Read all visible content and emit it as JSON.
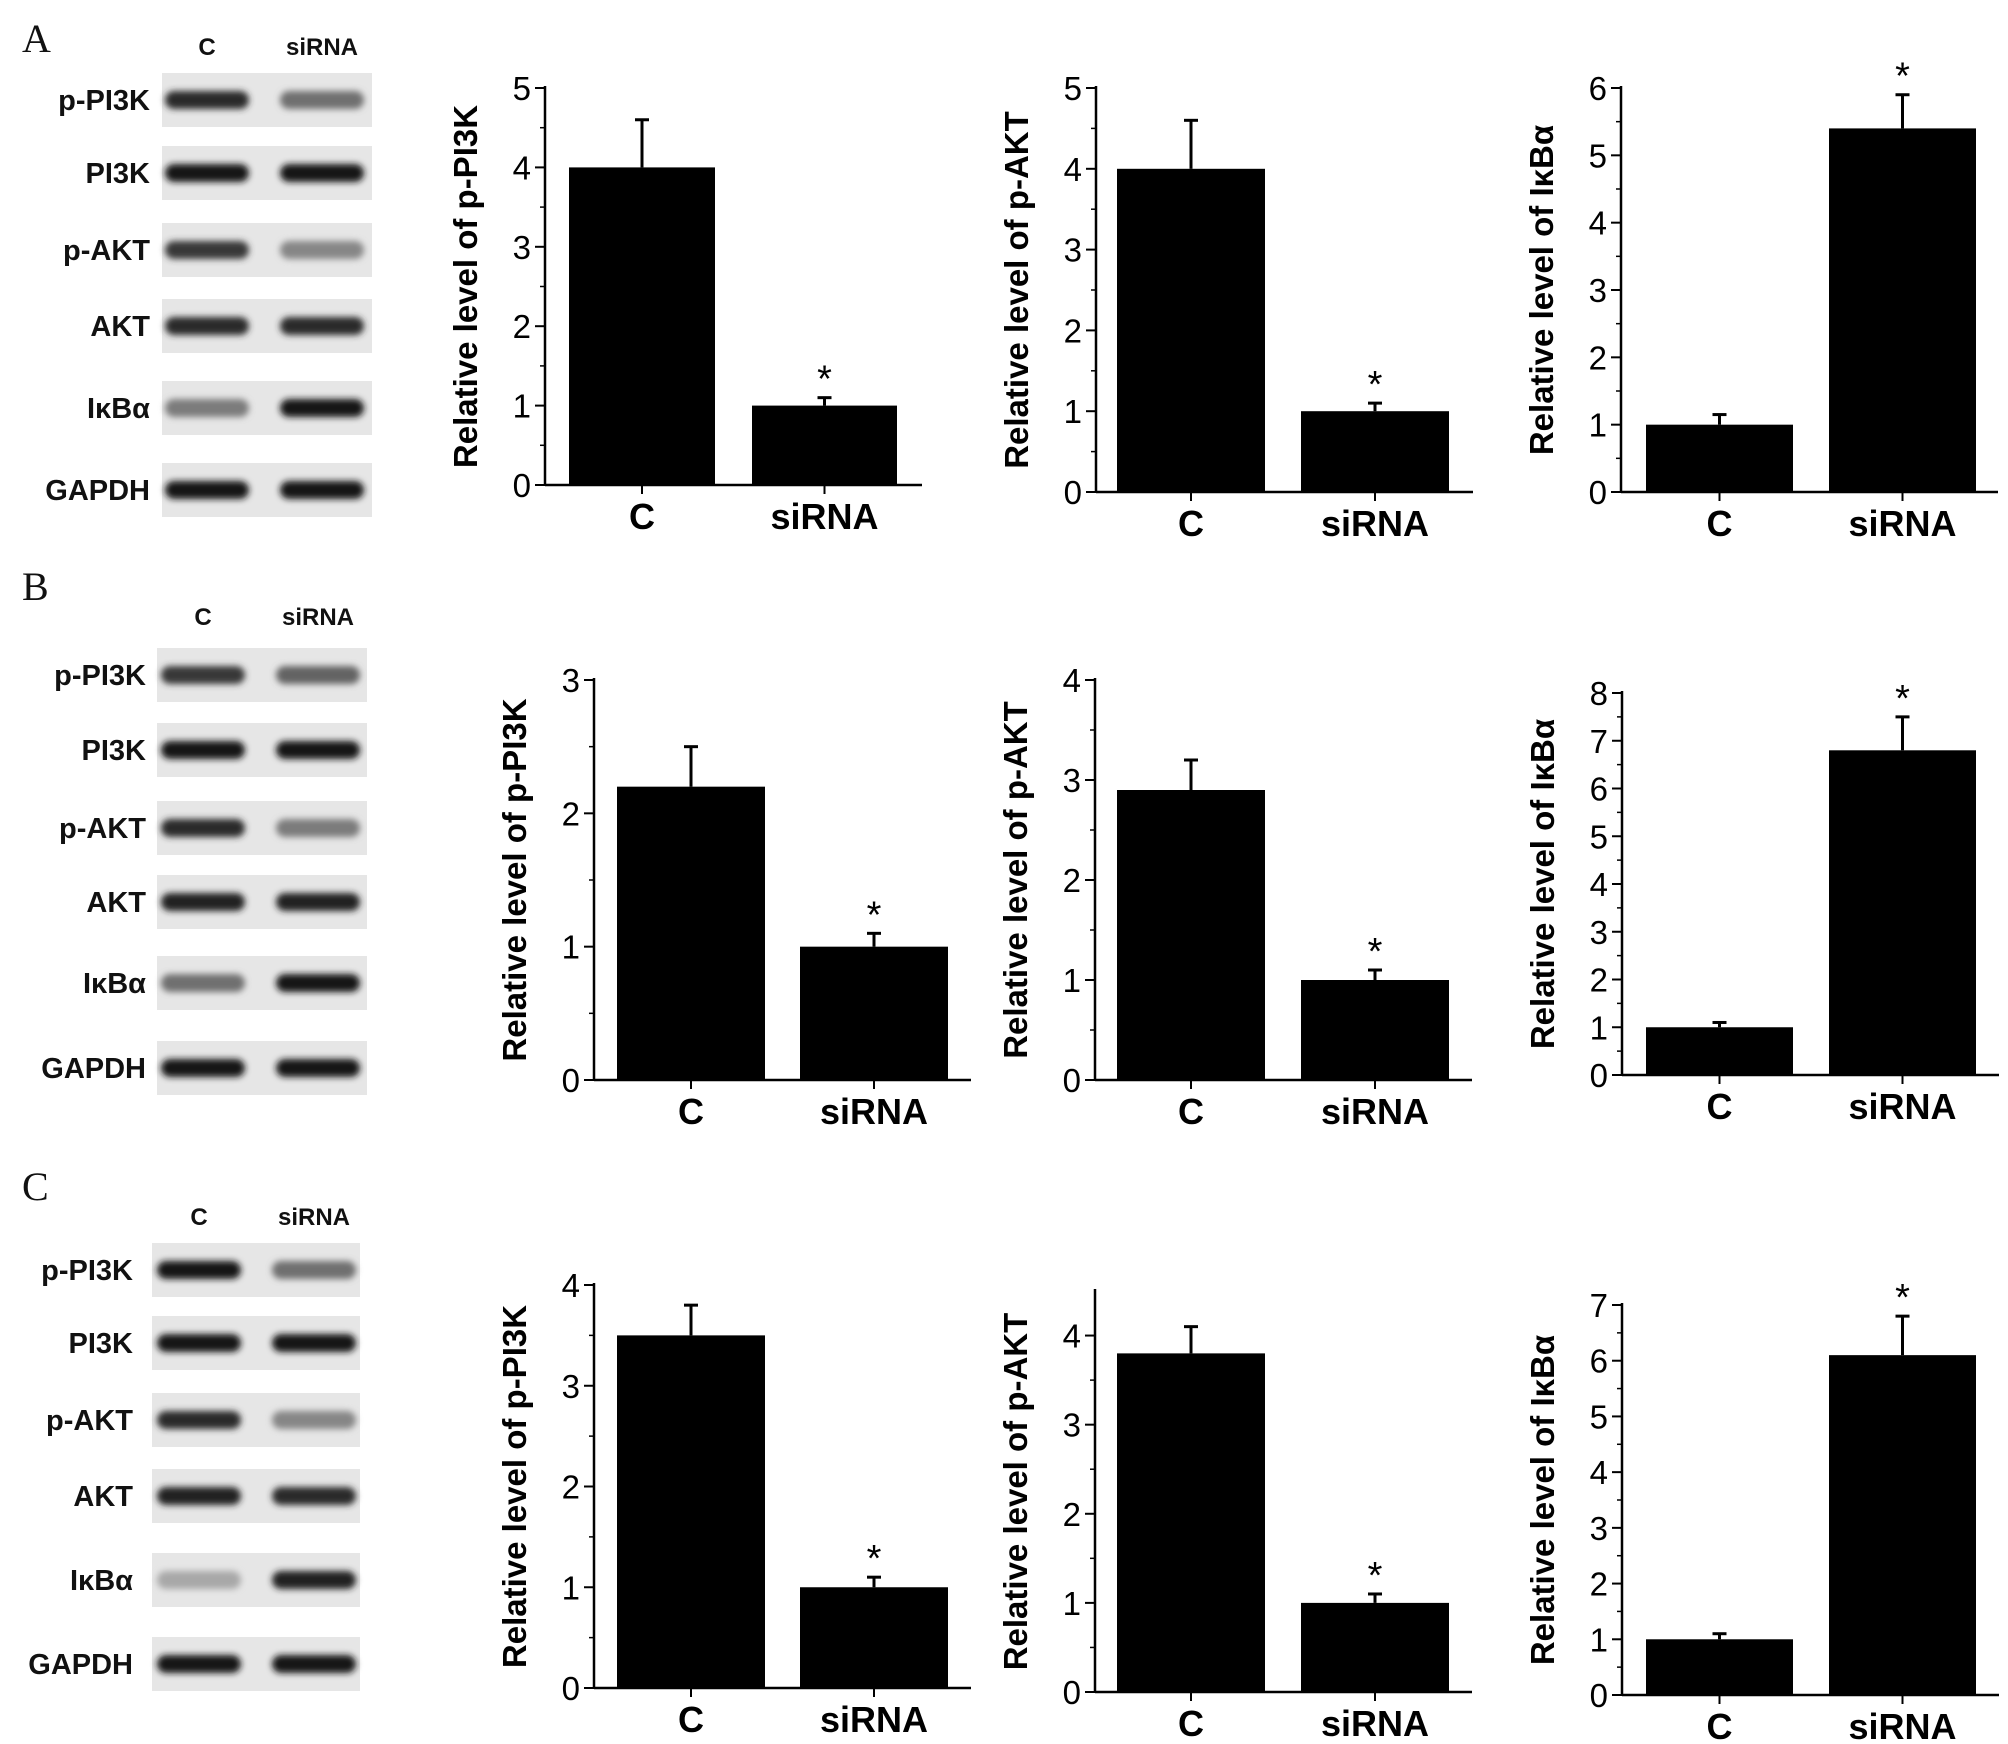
{
  "panels": [
    {
      "letter": "A",
      "blot": {
        "lanes": [
          "C",
          "siRNA"
        ],
        "rows": [
          {
            "label": "p-PI3K",
            "intensity": [
              0.85,
              0.55
            ]
          },
          {
            "label": "PI3K",
            "intensity": [
              0.95,
              0.95
            ]
          },
          {
            "label": "p-AKT",
            "intensity": [
              0.8,
              0.45
            ]
          },
          {
            "label": "AKT",
            "intensity": [
              0.85,
              0.85
            ]
          },
          {
            "label": "IκBα",
            "intensity": [
              0.5,
              0.95
            ]
          },
          {
            "label": "GAPDH",
            "intensity": [
              0.95,
              0.95
            ]
          }
        ]
      }
    },
    {
      "letter": "B",
      "blot": {
        "lanes": [
          "C",
          "siRNA"
        ],
        "rows": [
          {
            "label": "p-PI3K",
            "intensity": [
              0.8,
              0.6
            ]
          },
          {
            "label": "PI3K",
            "intensity": [
              0.95,
              0.95
            ]
          },
          {
            "label": "p-AKT",
            "intensity": [
              0.85,
              0.5
            ]
          },
          {
            "label": "AKT",
            "intensity": [
              0.9,
              0.9
            ]
          },
          {
            "label": "IκBα",
            "intensity": [
              0.55,
              0.95
            ]
          },
          {
            "label": "GAPDH",
            "intensity": [
              0.95,
              0.95
            ]
          }
        ]
      }
    },
    {
      "letter": "C",
      "blot": {
        "lanes": [
          "C",
          "siRNA"
        ],
        "rows": [
          {
            "label": "p-PI3K",
            "intensity": [
              0.95,
              0.55
            ]
          },
          {
            "label": "PI3K",
            "intensity": [
              0.95,
              0.95
            ]
          },
          {
            "label": "p-AKT",
            "intensity": [
              0.85,
              0.45
            ]
          },
          {
            "label": "AKT",
            "intensity": [
              0.9,
              0.85
            ]
          },
          {
            "label": "IκBα",
            "intensity": [
              0.3,
              0.9
            ]
          },
          {
            "label": "GAPDH",
            "intensity": [
              0.95,
              0.95
            ]
          }
        ]
      }
    }
  ],
  "chart_data": [
    {
      "panel": "A",
      "type": "bar",
      "categories": [
        "C",
        "siRNA"
      ],
      "values": [
        4.0,
        1.0
      ],
      "errors": [
        0.6,
        0.1
      ],
      "significance": [
        "",
        "*"
      ],
      "ylabel": "Relative level of p-PI3K",
      "ylim": [
        0,
        5
      ],
      "yticks": [
        0,
        1,
        2,
        3,
        4,
        5
      ]
    },
    {
      "panel": "A",
      "type": "bar",
      "categories": [
        "C",
        "siRNA"
      ],
      "values": [
        4.0,
        1.0
      ],
      "errors": [
        0.6,
        0.1
      ],
      "significance": [
        "",
        "*"
      ],
      "ylabel": "Relative level of p-AKT",
      "ylim": [
        0,
        5
      ],
      "yticks": [
        0,
        1,
        2,
        3,
        4,
        5
      ]
    },
    {
      "panel": "A",
      "type": "bar",
      "categories": [
        "C",
        "siRNA"
      ],
      "values": [
        1.0,
        5.4
      ],
      "errors": [
        0.15,
        0.5
      ],
      "significance": [
        "",
        "*"
      ],
      "ylabel": "Relative level of IκBα",
      "ylim": [
        0,
        6
      ],
      "yticks": [
        0,
        1,
        2,
        3,
        4,
        5,
        6
      ]
    },
    {
      "panel": "B",
      "type": "bar",
      "categories": [
        "C",
        "siRNA"
      ],
      "values": [
        2.2,
        1.0
      ],
      "errors": [
        0.3,
        0.1
      ],
      "significance": [
        "",
        "*"
      ],
      "ylabel": "Relative level of p-PI3K",
      "ylim": [
        0,
        3
      ],
      "yticks": [
        0,
        1,
        2,
        3
      ]
    },
    {
      "panel": "B",
      "type": "bar",
      "categories": [
        "C",
        "siRNA"
      ],
      "values": [
        2.9,
        1.0
      ],
      "errors": [
        0.3,
        0.1
      ],
      "significance": [
        "",
        "*"
      ],
      "ylabel": "Relative level of p-AKT",
      "ylim": [
        0,
        4
      ],
      "yticks": [
        0,
        1,
        2,
        3,
        4
      ]
    },
    {
      "panel": "B",
      "type": "bar",
      "categories": [
        "C",
        "siRNA"
      ],
      "values": [
        1.0,
        6.8
      ],
      "errors": [
        0.1,
        0.7
      ],
      "significance": [
        "",
        "*"
      ],
      "ylabel": "Relative level of IκBα",
      "ylim": [
        0,
        8
      ],
      "yticks": [
        0,
        1,
        2,
        3,
        4,
        5,
        6,
        7,
        8
      ]
    },
    {
      "panel": "C",
      "type": "bar",
      "categories": [
        "C",
        "siRNA"
      ],
      "values": [
        3.5,
        1.0
      ],
      "errors": [
        0.3,
        0.1
      ],
      "significance": [
        "",
        "*"
      ],
      "ylabel": "Relative level of p-PI3K",
      "ylim": [
        0,
        4
      ],
      "yticks": [
        0,
        1,
        2,
        3,
        4
      ]
    },
    {
      "panel": "C",
      "type": "bar",
      "categories": [
        "C",
        "siRNA"
      ],
      "values": [
        3.8,
        1.0
      ],
      "errors": [
        0.3,
        0.1
      ],
      "significance": [
        "",
        "*"
      ],
      "ylabel": "Relative level of p-AKT",
      "ylim": [
        0,
        4.5
      ],
      "yticks": [
        0,
        1,
        2,
        3,
        4
      ]
    },
    {
      "panel": "C",
      "type": "bar",
      "categories": [
        "C",
        "siRNA"
      ],
      "values": [
        1.0,
        6.1
      ],
      "errors": [
        0.1,
        0.7
      ],
      "significance": [
        "",
        "*"
      ],
      "ylabel": "Relative level of IκBα",
      "ylim": [
        0,
        7
      ],
      "yticks": [
        0,
        1,
        2,
        3,
        4,
        5,
        6,
        7
      ]
    }
  ]
}
